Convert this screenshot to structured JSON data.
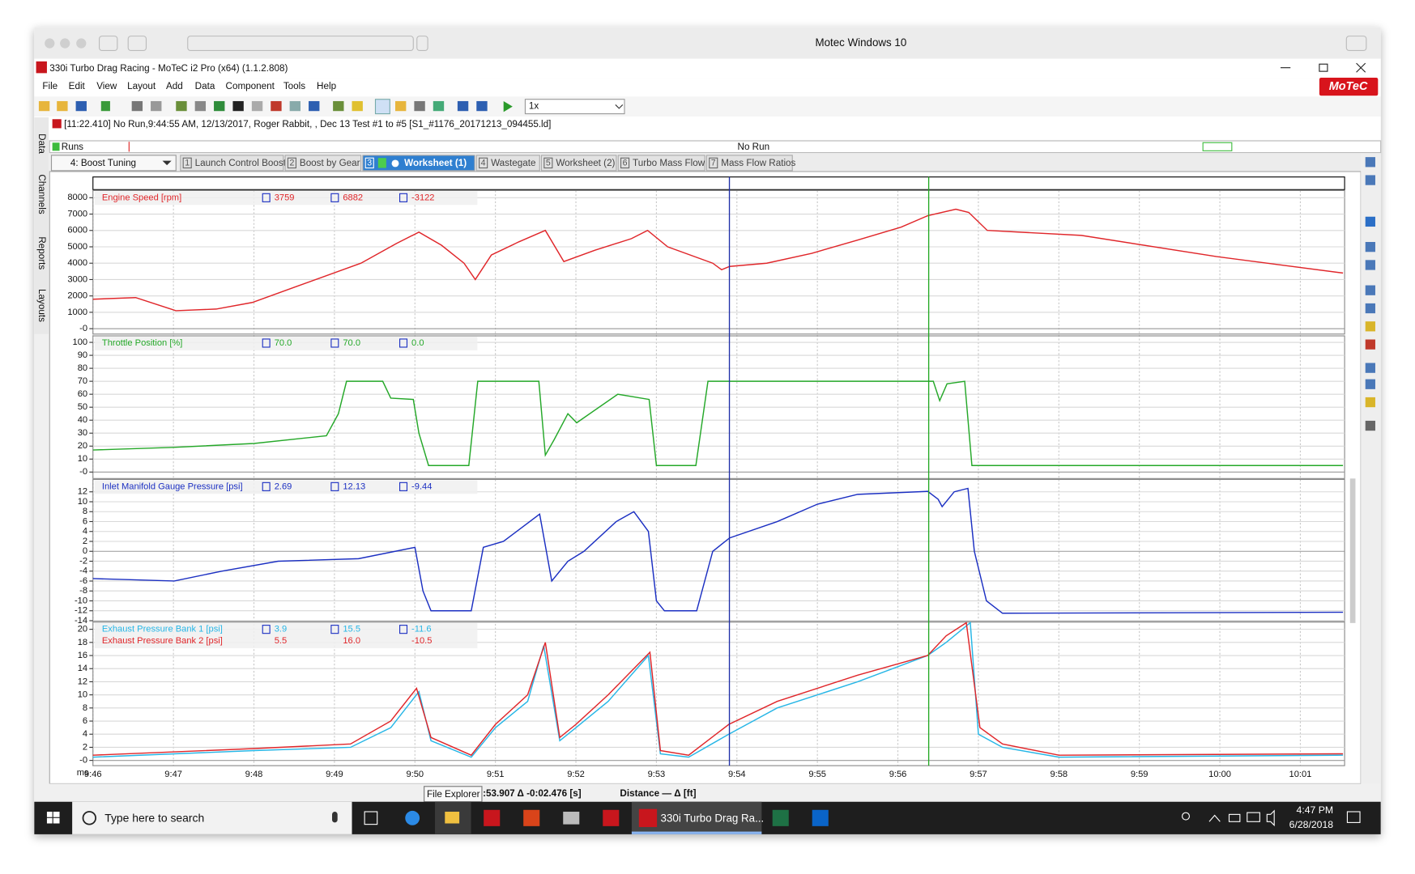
{
  "window": {
    "title": "Motec Windows 10"
  },
  "app": {
    "title": "330i Turbo Drag Racing - MoTeC i2 Pro (x64) (1.1.2.808)",
    "logo": "MoTeC",
    "menu": [
      "File",
      "Edit",
      "View",
      "Layout",
      "Add",
      "Data",
      "Component",
      "Tools",
      "Help"
    ],
    "speed": "1x",
    "info": "[11:22.410] No Run,9:44:55 AM, 12/13/2017, Roger Rabbit, , Dec 13 Test #1 to #5 [S1_#1176_20171213_094455.ld]",
    "side_tabs": [
      "Data",
      "Channels",
      "Reports",
      "Layouts"
    ],
    "runs_label": "Runs",
    "run_status": "No Run",
    "layout_select": "4: Boost Tuning",
    "worksheet_tabs": [
      {
        "num": "1",
        "label": "Launch Control Boost"
      },
      {
        "num": "2",
        "label": "Boost by Gear"
      },
      {
        "num": "3",
        "label": "Worksheet (1)"
      },
      {
        "num": "4",
        "label": "Wastegate"
      },
      {
        "num": "5",
        "label": "Worksheet (2)"
      },
      {
        "num": "6",
        "label": "Turbo Mass Flow"
      },
      {
        "num": "7",
        "label": "Mass Flow Ratios"
      }
    ]
  },
  "cursors": [
    {
      "x": 593.907,
      "color": "#1f2fa8"
    },
    {
      "x": 596.383,
      "color": "#22a822"
    }
  ],
  "chart_data": [
    {
      "type": "line",
      "xlim": [
        586,
        601.55
      ],
      "ylim": [
        -330,
        8440
      ],
      "yticks": [
        8000,
        7000,
        6000,
        5000,
        4000,
        3000,
        2000,
        1000,
        {
          "value": 0,
          "label": "-0"
        }
      ],
      "series": [
        {
          "name": "Engine Speed [rpm]",
          "color": "#e0262a",
          "readouts": [
            "3759",
            "6882",
            "-3122"
          ],
          "x": [
            586,
            586.53,
            587.03,
            587.53,
            587.98,
            588.54,
            589.33,
            589.77,
            590.05,
            590.33,
            590.61,
            590.75,
            590.95,
            591.29,
            591.62,
            591.85,
            592.24,
            592.69,
            592.89,
            593.14,
            593.7,
            593.81,
            593.91,
            594.37,
            594.93,
            595.49,
            596.04,
            596.37,
            596.72,
            596.88,
            597.11,
            598.28,
            599.96,
            601.53
          ],
          "values": [
            1800,
            1900,
            1100,
            1200,
            1600,
            2600,
            4000,
            5200,
            5900,
            5100,
            4000,
            3000,
            4500,
            5300,
            6000,
            4100,
            4800,
            5500,
            6000,
            5000,
            4000,
            3600,
            3800,
            4000,
            4600,
            5400,
            6200,
            6900,
            7300,
            7100,
            6000,
            5700,
            4400,
            3400
          ]
        }
      ]
    },
    {
      "type": "line",
      "xlim": [
        586,
        601.55
      ],
      "ylim": [
        -5,
        105
      ],
      "yticks": [
        100,
        90,
        80,
        70,
        60,
        50,
        40,
        30,
        20,
        10,
        {
          "value": 0,
          "label": "-0"
        }
      ],
      "series": [
        {
          "name": "Throttle Position [%]",
          "color": "#25a829",
          "readouts": [
            "70.0",
            "70.0",
            "0.0"
          ],
          "x": [
            586,
            587,
            588,
            588.9,
            589.05,
            589.15,
            589.6,
            589.7,
            589.98,
            590.05,
            590.17,
            590.67,
            590.78,
            591.54,
            591.62,
            591.73,
            591.9,
            592.01,
            592.52,
            592.91,
            593.0,
            593.49,
            593.64,
            596.44,
            596.52,
            596.61,
            596.83,
            596.92,
            601.53
          ],
          "values": [
            17,
            19,
            22,
            28,
            45,
            70,
            70,
            57,
            56,
            30,
            5,
            5,
            70,
            70,
            13,
            25,
            45,
            38,
            60,
            56,
            5,
            5,
            70,
            70,
            55,
            68,
            70,
            5,
            5
          ]
        }
      ]
    },
    {
      "type": "line",
      "xlim": [
        586,
        601.55
      ],
      "ylim": [
        -14.1,
        14.5
      ],
      "yticks": [
        12,
        10,
        8,
        6,
        4,
        2,
        0,
        -2,
        -4,
        -6,
        -8,
        -10,
        -12,
        -14
      ],
      "series": [
        {
          "name": "Inlet Manifold Gauge Pressure [psi]",
          "color": "#1b2fc2",
          "readouts": [
            "2.69",
            "12.13",
            "-9.44"
          ],
          "x": [
            586,
            587.01,
            587.6,
            588.3,
            589.3,
            590.0,
            590.1,
            590.2,
            590.7,
            590.85,
            591.1,
            591.55,
            591.7,
            591.9,
            592.1,
            592.5,
            592.72,
            592.9,
            593.0,
            593.1,
            593.5,
            593.7,
            593.91,
            594.5,
            595.0,
            595.5,
            596.37,
            596.5,
            596.55,
            596.7,
            596.87,
            596.95,
            597.1,
            597.3,
            601.53
          ],
          "values": [
            -5.5,
            -6,
            -4,
            -2,
            -1.5,
            0.8,
            -8,
            -12,
            -12,
            0.8,
            2,
            7.5,
            -6,
            -2,
            0,
            6,
            8,
            4,
            -10,
            -12,
            -12,
            0,
            2.7,
            6,
            9.5,
            11.5,
            12.1,
            10.5,
            9,
            12,
            12.7,
            0,
            -10,
            -12.5,
            -12.3
          ]
        }
      ]
    },
    {
      "type": "line",
      "xlim": [
        586,
        601.55
      ],
      "ylim": [
        -0.8,
        21.1
      ],
      "yticks": [
        20,
        18,
        16,
        14,
        12,
        10,
        8,
        6,
        4,
        2,
        {
          "value": 0,
          "label": "-0"
        }
      ],
      "x_unit": "ms",
      "xticks": [
        {
          "value": 586,
          "label": "9:46"
        },
        {
          "value": 587,
          "label": "9:47"
        },
        {
          "value": 588,
          "label": "9:48"
        },
        {
          "value": 589,
          "label": "9:49"
        },
        {
          "value": 590,
          "label": "9:50"
        },
        {
          "value": 591,
          "label": "9:51"
        },
        {
          "value": 592,
          "label": "9:52"
        },
        {
          "value": 593,
          "label": "9:53"
        },
        {
          "value": 594,
          "label": "9:54"
        },
        {
          "value": 595,
          "label": "9:55"
        },
        {
          "value": 596,
          "label": "9:56"
        },
        {
          "value": 597,
          "label": "9:57"
        },
        {
          "value": 598,
          "label": "9:58"
        },
        {
          "value": 599,
          "label": "9:59"
        },
        {
          "value": 600,
          "label": "10:00"
        },
        {
          "value": 601,
          "label": "10:01"
        }
      ],
      "series": [
        {
          "name": "Exhaust Pressure Bank 1 [psi]",
          "color": "#27b6e6",
          "readouts": [
            "3.9",
            "15.5",
            "-11.6"
          ],
          "x": [
            586,
            588,
            589.2,
            589.7,
            590.05,
            590.2,
            590.7,
            591.0,
            591.4,
            591.6,
            591.8,
            592.0,
            592.4,
            592.9,
            593.05,
            593.4,
            593.9,
            594.5,
            595.5,
            596.37,
            596.6,
            596.9,
            597.0,
            597.3,
            598.0,
            601.53
          ],
          "values": [
            0.5,
            1.5,
            2,
            5,
            10.5,
            3,
            0.5,
            5,
            9,
            17.5,
            3,
            5,
            9,
            16,
            1,
            0.5,
            4,
            8,
            12,
            16,
            18,
            21,
            4,
            2,
            0.5,
            0.8
          ]
        },
        {
          "name": "Exhaust Pressure Bank 2 [psi]",
          "color": "#e0262a",
          "readouts": [
            "5.5",
            "16.0",
            "-10.5"
          ],
          "x": [
            586,
            588,
            589.2,
            589.7,
            590.02,
            590.2,
            590.7,
            591.0,
            591.4,
            591.62,
            591.8,
            592.0,
            592.4,
            592.92,
            593.05,
            593.4,
            593.9,
            594.5,
            595.5,
            596.37,
            596.6,
            596.85,
            597.02,
            597.3,
            598.0,
            601.53
          ],
          "values": [
            0.8,
            1.8,
            2.5,
            6,
            11,
            3.5,
            0.8,
            5.5,
            10,
            18,
            3.5,
            5.5,
            10,
            16.5,
            1.5,
            0.8,
            5.5,
            9,
            13,
            16,
            19,
            21,
            5,
            2.5,
            0.8,
            1
          ]
        }
      ]
    }
  ],
  "status": {
    "tooltip": "File Explorer",
    "cursor": ":53.907 Δ -0:02.476 [s]",
    "distance": "Distance — Δ [ft]"
  },
  "taskbar": {
    "search": "Type here to search",
    "active_app": "330i Turbo Drag Ra...",
    "time": "4:47 PM",
    "date": "6/28/2018"
  }
}
